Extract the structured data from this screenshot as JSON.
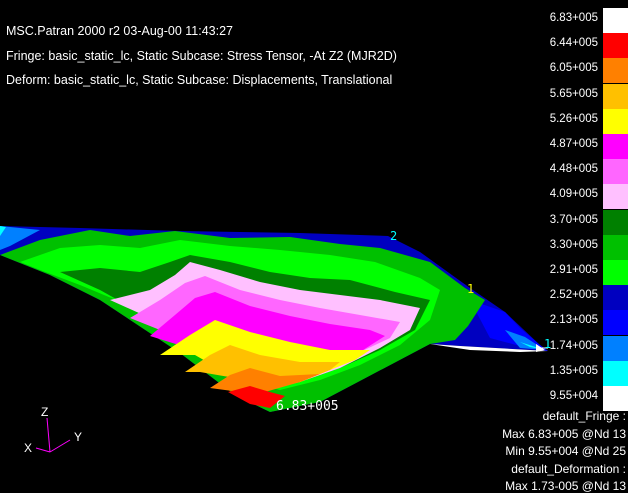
{
  "header": {
    "title": "MSC.Patran 2000 r2 03-Aug-00 11:43:27",
    "fringe": "Fringe: basic_static_lc, Static Subcase: Stress Tensor, -At Z2 (MJR2D)",
    "deform": "Deform: basic_static_lc, Static Subcase: Displacements, Translational"
  },
  "legend": {
    "levels": [
      {
        "label": "6.83+005",
        "color": "#ffffff"
      },
      {
        "label": "6.44+005",
        "color": "#ff0000"
      },
      {
        "label": "6.05+005",
        "color": "#ff8000"
      },
      {
        "label": "5.65+005",
        "color": "#ffc000"
      },
      {
        "label": "5.26+005",
        "color": "#ffff00"
      },
      {
        "label": "4.87+005",
        "color": "#ff00ff"
      },
      {
        "label": "4.48+005",
        "color": "#ff66ff"
      },
      {
        "label": "4.09+005",
        "color": "#ffc0ff"
      },
      {
        "label": "3.70+005",
        "color": "#008000"
      },
      {
        "label": "3.30+005",
        "color": "#00c000"
      },
      {
        "label": "2.91+005",
        "color": "#00ff00"
      },
      {
        "label": "2.52+005",
        "color": "#0000c0"
      },
      {
        "label": "2.13+005",
        "color": "#0000ff"
      },
      {
        "label": "1.74+005",
        "color": "#0080ff"
      },
      {
        "label": "1.35+005",
        "color": "#00ffff"
      },
      {
        "label": "9.55+004",
        "color": "#ffffff"
      }
    ]
  },
  "summary": {
    "fringe_name": "default_Fringe :",
    "max": "Max 6.83+005 @Nd 13",
    "min": "Min 9.55+004 @Nd 25",
    "deform_name": "default_Deformation :",
    "def_max": "Max 1.73-005 @Nd 13"
  },
  "model": {
    "peak_label": "6.83+005",
    "node_z": "2",
    "node_1a": "1",
    "node_1b": "1"
  },
  "triad": {
    "z": "Z",
    "y": "Y",
    "x": "X"
  }
}
